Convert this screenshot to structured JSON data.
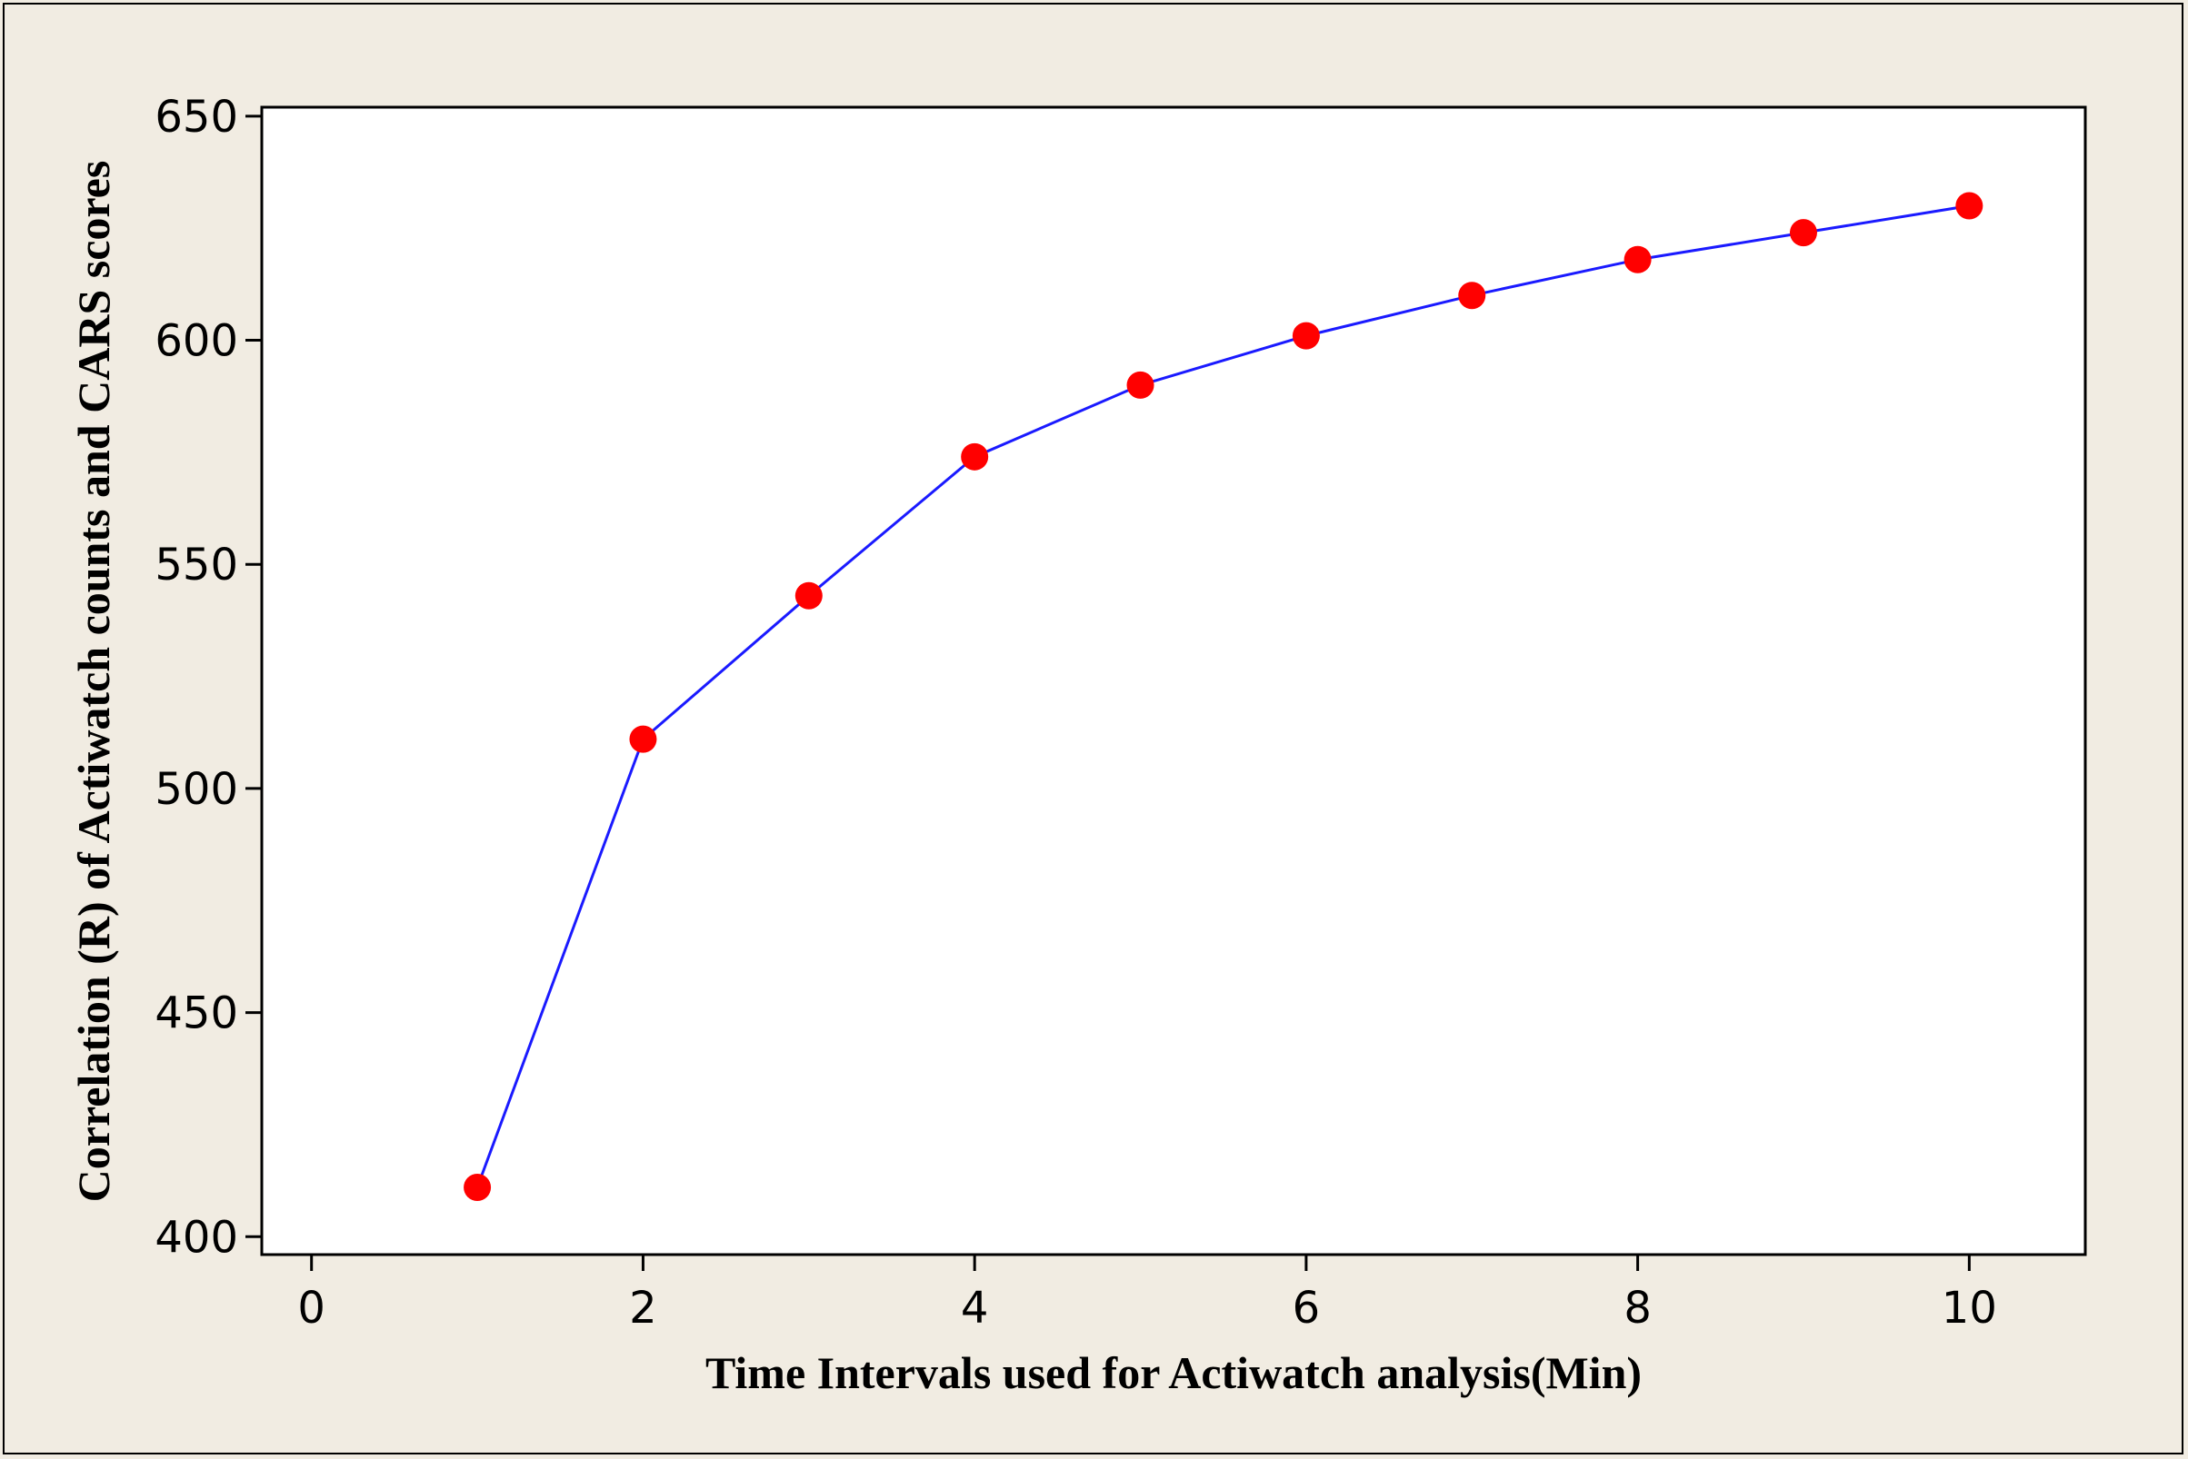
{
  "chart_data": {
    "type": "line",
    "title": "",
    "xlabel": "Time Intervals used for Actiwatch analysis(Min)",
    "ylabel": "Correlation (R) of Actiwatch counts and CARS scores",
    "xlim": [
      -0.3,
      10.7
    ],
    "ylim": [
      396,
      652
    ],
    "xticks": [
      0,
      2,
      4,
      6,
      8,
      10
    ],
    "yticks": [
      400,
      450,
      500,
      550,
      600,
      650
    ],
    "series": [
      {
        "x": [
          1,
          2,
          3,
          4,
          5,
          6,
          7,
          8,
          9,
          10
        ],
        "y": [
          411,
          511,
          543,
          574,
          590,
          601,
          610,
          618,
          624,
          630
        ],
        "line_color": "#1a1aff",
        "marker_color": "#ff0000"
      }
    ],
    "grid": false,
    "legend": "none"
  }
}
